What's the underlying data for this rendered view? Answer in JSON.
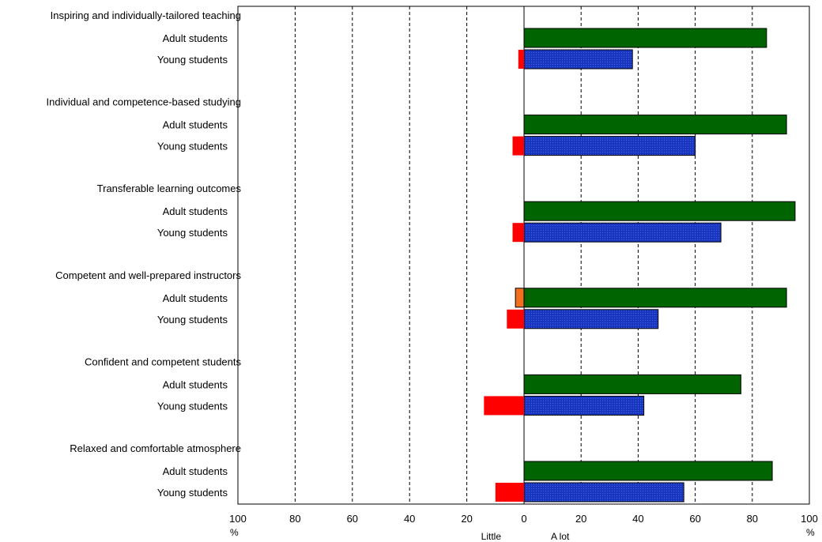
{
  "chart_data": {
    "type": "bar",
    "orientation": "horizontal",
    "diverging": true,
    "x_axis": {
      "ticks": [
        100,
        80,
        60,
        40,
        20,
        0,
        20,
        40,
        60,
        80,
        100
      ],
      "unit_left": "%",
      "unit_right": "%",
      "left_direction_label": "Little",
      "right_direction_label": "A lot",
      "grid": "dashed vertical"
    },
    "xlim": [
      -100,
      100
    ],
    "colors": {
      "adult_a_lot": "#006400",
      "young_a_lot": "#1836c0",
      "young_little": "#ff0000",
      "adult_little": "#f07020"
    },
    "groups": [
      {
        "label": "Inspiring and individually-tailored teaching",
        "rows": [
          {
            "label": "Adult students",
            "a_lot": 85,
            "little": 0
          },
          {
            "label": "Young students",
            "a_lot": 38,
            "little": 2
          }
        ]
      },
      {
        "label": "Individual and competence-based studying",
        "rows": [
          {
            "label": "Adult students",
            "a_lot": 92,
            "little": 0
          },
          {
            "label": "Young students",
            "a_lot": 60,
            "little": 4
          }
        ]
      },
      {
        "label": "Transferable learning outcomes",
        "rows": [
          {
            "label": "Adult students",
            "a_lot": 95,
            "little": 0
          },
          {
            "label": "Young students",
            "a_lot": 69,
            "little": 4
          }
        ]
      },
      {
        "label": "Competent and well-prepared instructors",
        "rows": [
          {
            "label": "Adult students",
            "a_lot": 92,
            "little": 3
          },
          {
            "label": "Young students",
            "a_lot": 47,
            "little": 6
          }
        ]
      },
      {
        "label": "Confident and competent students",
        "rows": [
          {
            "label": "Adult students",
            "a_lot": 76,
            "little": 0
          },
          {
            "label": "Young students",
            "a_lot": 42,
            "little": 14
          }
        ]
      },
      {
        "label": "Relaxed and comfortable atmosphere",
        "rows": [
          {
            "label": "Adult students",
            "a_lot": 87,
            "little": 0
          },
          {
            "label": "Young students",
            "a_lot": 56,
            "little": 10
          }
        ]
      }
    ]
  }
}
